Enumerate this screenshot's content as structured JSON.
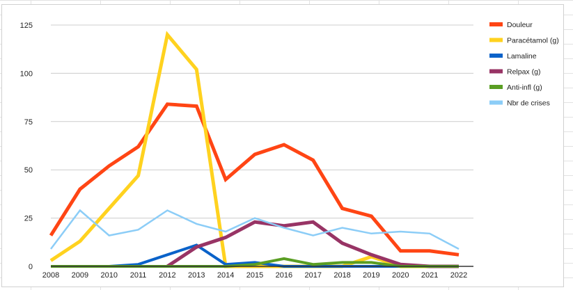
{
  "chart_data": {
    "type": "line",
    "title": "",
    "xlabel": "",
    "ylabel": "",
    "x": [
      "2008",
      "2009",
      "2010",
      "2011",
      "2012",
      "2013",
      "2014",
      "2015",
      "2016",
      "2017",
      "2018",
      "2019",
      "2020",
      "2021",
      "2022"
    ],
    "ylim": [
      0,
      125
    ],
    "yticks": [
      0,
      25,
      50,
      75,
      100,
      125
    ],
    "grid": true,
    "legend_position": "right",
    "series": [
      {
        "name": "Douleur",
        "color": "#ff4514",
        "width": 5,
        "values": [
          16,
          40,
          52,
          62,
          84,
          83,
          45,
          58,
          63,
          55,
          30,
          26,
          8,
          8,
          6
        ]
      },
      {
        "name": "Paracétamol (g)",
        "color": "#ffd21f",
        "width": 5,
        "values": [
          3,
          13,
          30,
          47,
          120,
          102,
          0,
          0,
          0,
          0,
          0,
          5,
          0,
          0,
          0
        ]
      },
      {
        "name": "Lamaline",
        "color": "#0a62c9",
        "width": 4,
        "values": [
          0,
          0,
          0,
          1,
          6,
          11,
          1,
          2,
          0,
          0,
          0,
          0,
          0,
          0,
          0
        ]
      },
      {
        "name": "Relpax (g)",
        "color": "#983465",
        "width": 5,
        "values": [
          null,
          null,
          null,
          null,
          0,
          10,
          15,
          23,
          21,
          23,
          12,
          6,
          1,
          0,
          0
        ]
      },
      {
        "name": "Anti-infl (g)",
        "color": "#5a9e23",
        "width": 4,
        "values": [
          0,
          0,
          0,
          0,
          0,
          0,
          0,
          1,
          4,
          1,
          2,
          2,
          0,
          0,
          0
        ]
      },
      {
        "name": "Nbr de crises",
        "color": "#8ccdf7",
        "width": 2.5,
        "values": [
          9,
          29,
          16,
          19,
          29,
          22,
          18,
          25,
          20,
          16,
          20,
          17,
          18,
          17,
          9
        ]
      }
    ]
  }
}
